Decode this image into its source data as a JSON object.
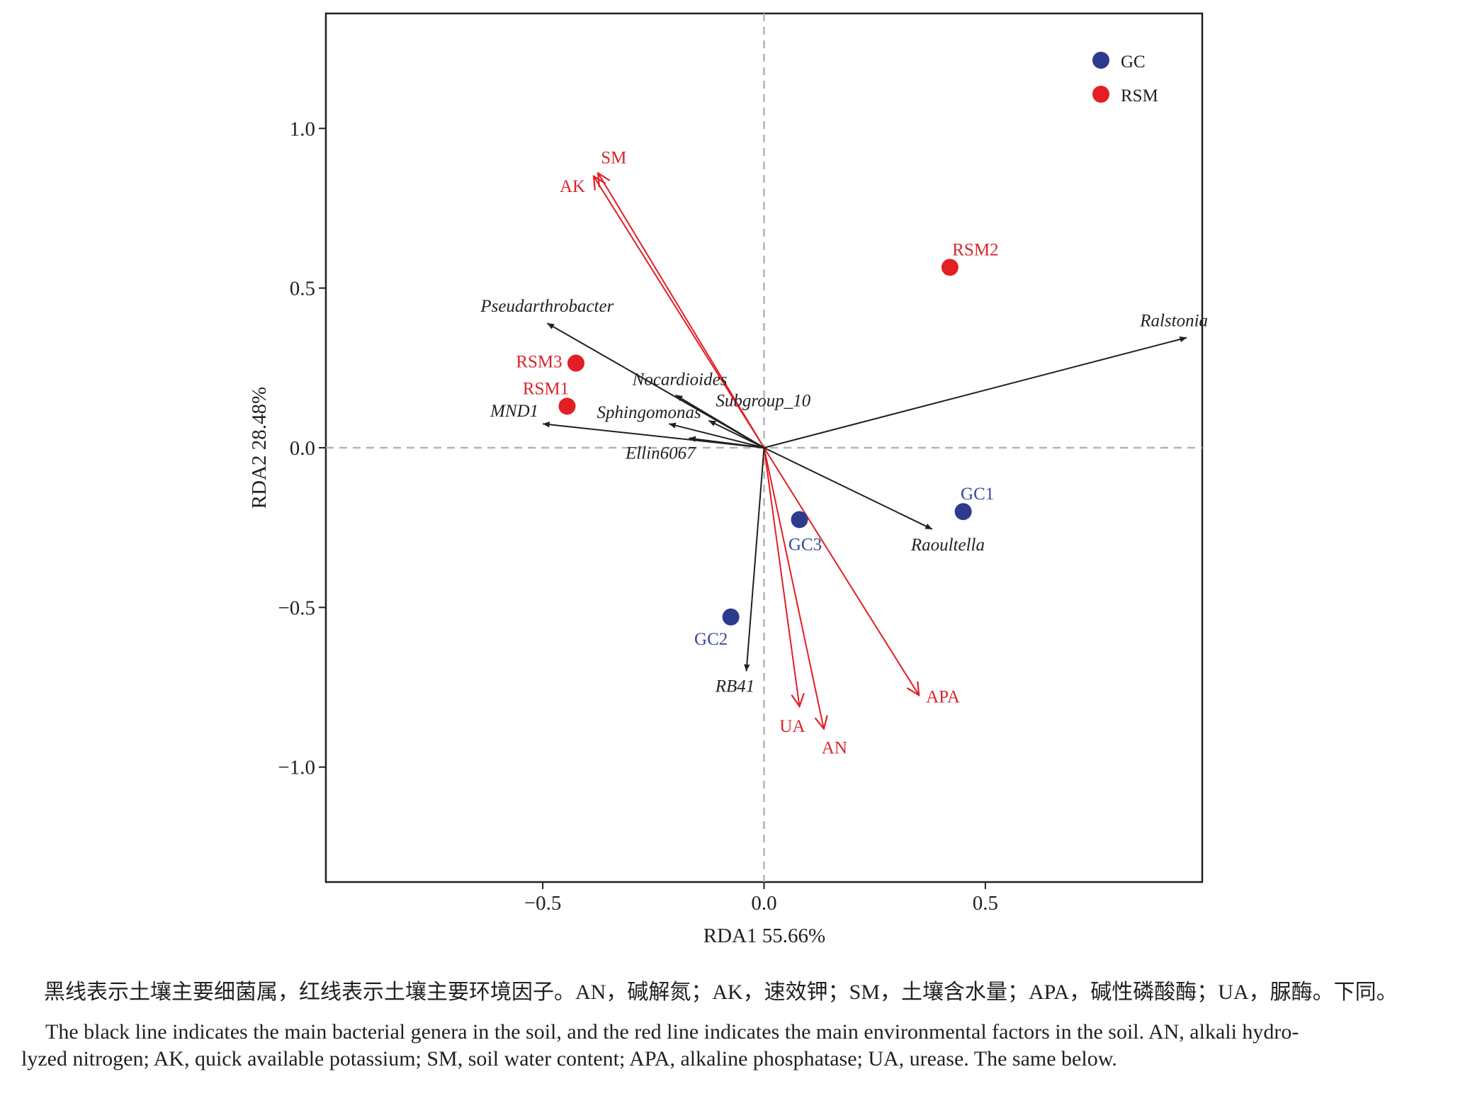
{
  "chart_data": {
    "type": "scatter",
    "xlabel": "RDA1 55.66%",
    "ylabel": "RDA2 28.48%",
    "xlim": [
      -0.99,
      0.99
    ],
    "ylim": [
      -1.36,
      1.36
    ],
    "xticks": [
      -0.5,
      0.0,
      0.5
    ],
    "yticks": [
      -1.0,
      -0.5,
      0.0,
      0.5,
      1.0
    ],
    "xtick_labels": [
      "−0.5",
      "0.0",
      "0.5"
    ],
    "ytick_labels": [
      "−1.0",
      "−0.5",
      "0.0",
      "0.5",
      "1.0"
    ],
    "grid": false,
    "reference_lines": "dashed at x=0 and y=0",
    "legend": {
      "position": "top-right",
      "entries": [
        {
          "label": "GC",
          "color": "#2e3a8c"
        },
        {
          "label": "RSM",
          "color": "#e31e24"
        }
      ]
    },
    "samples": [
      {
        "label": "RSM1",
        "group": "RSM",
        "x": -0.445,
        "y": 0.13
      },
      {
        "label": "RSM2",
        "group": "RSM",
        "x": 0.42,
        "y": 0.565
      },
      {
        "label": "RSM3",
        "group": "RSM",
        "x": -0.425,
        "y": 0.265
      },
      {
        "label": "GC1",
        "group": "GC",
        "x": 0.45,
        "y": -0.2
      },
      {
        "label": "GC2",
        "group": "GC",
        "x": -0.075,
        "y": -0.53
      },
      {
        "label": "GC3",
        "group": "GC",
        "x": 0.08,
        "y": -0.225
      }
    ],
    "environmental_factors": [
      {
        "label": "SM",
        "x": -0.375,
        "y": 0.86
      },
      {
        "label": "AK",
        "x": -0.385,
        "y": 0.85
      },
      {
        "label": "APA",
        "x": 0.35,
        "y": -0.775
      },
      {
        "label": "UA",
        "x": 0.08,
        "y": -0.81
      },
      {
        "label": "AN",
        "x": 0.135,
        "y": -0.88
      }
    ],
    "bacterial_genera": [
      {
        "label": "Pseudarthrobacter",
        "x": -0.49,
        "y": 0.39
      },
      {
        "label": "Ralstonia",
        "x": 0.955,
        "y": 0.345
      },
      {
        "label": "Nocardioides",
        "x": -0.2,
        "y": 0.165
      },
      {
        "label": "Subgroup_10",
        "x": -0.125,
        "y": 0.085
      },
      {
        "label": "Sphingomonas",
        "x": -0.215,
        "y": 0.075
      },
      {
        "label": "MND1",
        "x": -0.5,
        "y": 0.075
      },
      {
        "label": "Ellin6067",
        "x": -0.17,
        "y": 0.03
      },
      {
        "label": "Raoultella",
        "x": 0.38,
        "y": -0.255
      },
      {
        "label": "RB41",
        "x": -0.04,
        "y": -0.7
      }
    ],
    "colors": {
      "environment": "#e31e24",
      "bacteria": "#231f20",
      "GC": "#2e3a8c",
      "RSM": "#e31e24",
      "GC_label": "#3a4a8f",
      "RSM_label": "#d7262b"
    }
  },
  "caption": {
    "zh": "黑线表示土壤主要细菌属，红线表示土壤主要环境因子。AN，碱解氮；AK，速效钾；SM，土壤含水量；APA，碱性磷酸酶；UA，脲酶。下同。",
    "en_line1": "The black line indicates the main bacterial genera in the soil, and the red line indicates the main environmental factors in the soil. AN, alkali hydro-",
    "en_line2": "lyzed nitrogen; AK, quick available potassium; SM, soil water content; APA, alkaline phosphatase; UA, urease. The same below."
  }
}
